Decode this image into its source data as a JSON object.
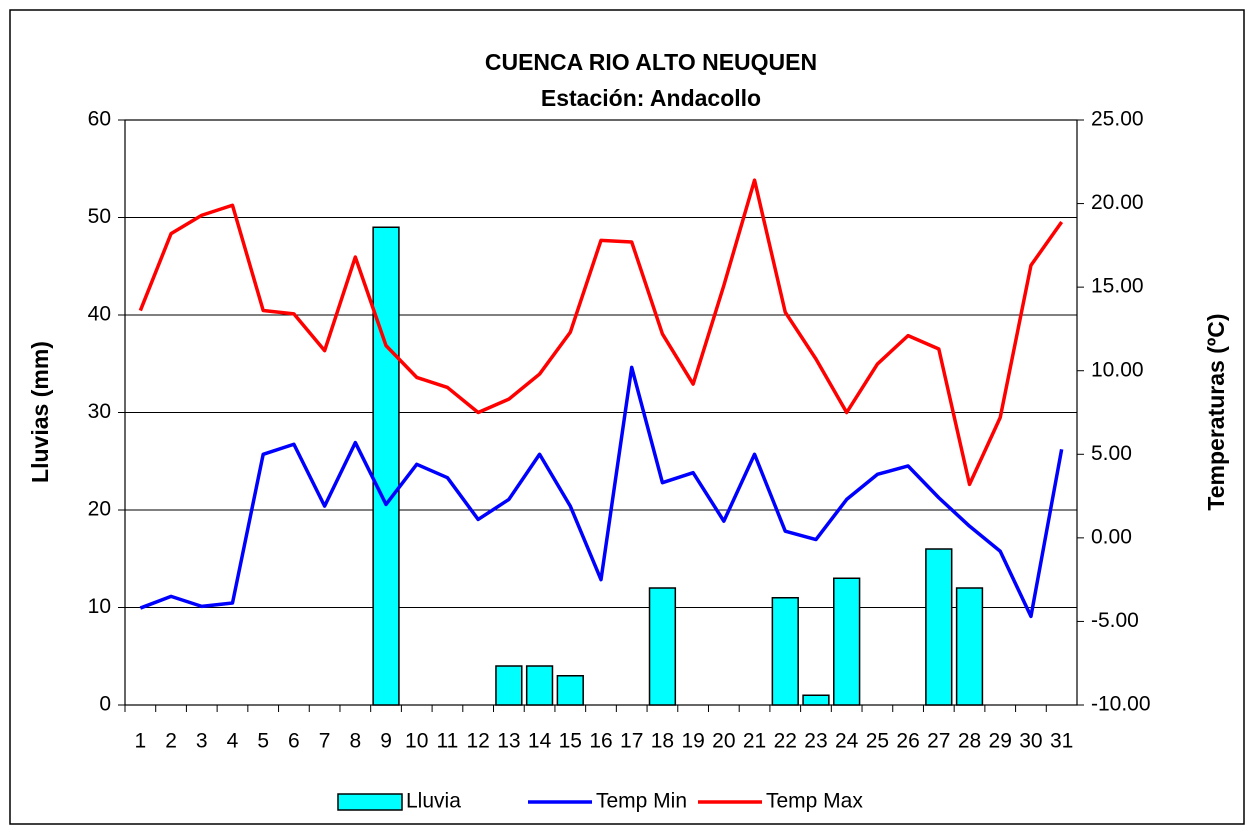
{
  "chart_data": {
    "type": "bar-line",
    "title": "CUENCA RIO ALTO NEUQUEN",
    "subtitle": "Estación: Andacollo",
    "y_label": "Lluvias (mm)",
    "y2_label": "Temperaturas (ºC)",
    "categories": [
      "1",
      "2",
      "3",
      "4",
      "5",
      "6",
      "7",
      "8",
      "9",
      "10",
      "11",
      "12",
      "13",
      "14",
      "15",
      "16",
      "17",
      "18",
      "19",
      "20",
      "21",
      "22",
      "23",
      "24",
      "25",
      "26",
      "27",
      "28",
      "29",
      "30",
      "31"
    ],
    "series": [
      {
        "name": "Lluvia",
        "type": "bar",
        "color": "#00ffff",
        "values": [
          0,
          0,
          0,
          0,
          0,
          0,
          0,
          0,
          49,
          0,
          0,
          0,
          4,
          4,
          3,
          0,
          0,
          12,
          0,
          0,
          0,
          11,
          1,
          13,
          0,
          0,
          16,
          12,
          0,
          0,
          0
        ]
      },
      {
        "name": "Temp Min",
        "type": "line",
        "axis": "y2",
        "color": "#0000ff",
        "values": [
          -4.2,
          -3.5,
          -4.1,
          -3.9,
          5.0,
          5.6,
          1.9,
          5.7,
          2.0,
          4.4,
          3.6,
          1.1,
          2.3,
          5.0,
          1.9,
          -2.5,
          10.2,
          3.3,
          3.9,
          1.0,
          5.0,
          0.4,
          -0.1,
          2.3,
          3.8,
          4.3,
          2.4,
          0.7,
          -0.8,
          -4.7,
          5.3
        ]
      },
      {
        "name": "Temp Max",
        "type": "line",
        "axis": "y2",
        "color": "#ff0000",
        "values": [
          13.6,
          18.2,
          19.3,
          19.9,
          13.6,
          13.4,
          11.2,
          16.8,
          11.5,
          9.6,
          9.0,
          7.5,
          8.3,
          9.8,
          12.3,
          17.8,
          17.7,
          12.2,
          9.2,
          15.1,
          21.4,
          13.5,
          10.7,
          7.5,
          10.4,
          12.1,
          11.3,
          3.2,
          7.2,
          16.3,
          18.9
        ]
      }
    ],
    "ylim": [
      0,
      60
    ],
    "yticks": [
      0,
      10,
      20,
      30,
      40,
      50,
      60
    ],
    "y2lim": [
      -10,
      25
    ],
    "y2ticks": [
      {
        "value": -10,
        "label": "-10.00"
      },
      {
        "value": -5,
        "label": "-5.00"
      },
      {
        "value": 0,
        "label": "0.00"
      },
      {
        "value": 5,
        "label": "5.00"
      },
      {
        "value": 10,
        "label": "10.00"
      },
      {
        "value": 15,
        "label": "15.00"
      },
      {
        "value": 20,
        "label": "20.00"
      },
      {
        "value": 25,
        "label": "25.00"
      }
    ],
    "grid": true,
    "legend": "bottom"
  }
}
